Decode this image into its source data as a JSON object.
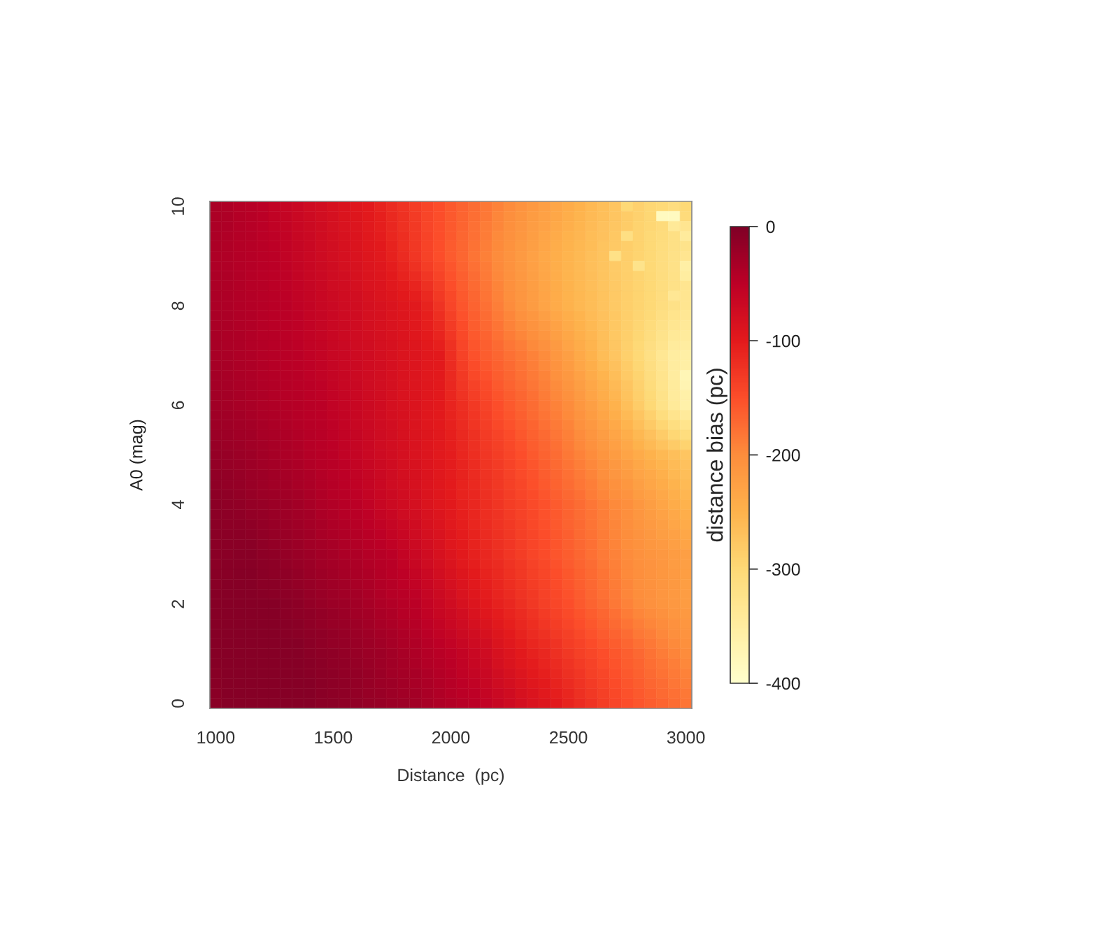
{
  "chart_data": {
    "type": "heatmap",
    "xlabel": "Distance  (pc)",
    "ylabel": "A0 (mag)",
    "clabel": "distance bias (pc)",
    "x": [
      1000,
      1050,
      1100,
      1150,
      1200,
      1250,
      1300,
      1350,
      1400,
      1450,
      1500,
      1550,
      1600,
      1650,
      1700,
      1750,
      1800,
      1850,
      1900,
      1950,
      2000,
      2050,
      2100,
      2150,
      2200,
      2250,
      2300,
      2350,
      2400,
      2450,
      2500,
      2550,
      2600,
      2650,
      2700,
      2750,
      2800,
      2850,
      2900,
      2950,
      3000
    ],
    "y": [
      10,
      9.8,
      9.6,
      9.4,
      9.2,
      9,
      8.8,
      8.6,
      8.4,
      8.2,
      8,
      7.8,
      7.6,
      7.4,
      7.2,
      7,
      6.8,
      6.6,
      6.4,
      6.2,
      6,
      5.8,
      5.6,
      5.4,
      5.2,
      5,
      4.8,
      4.6,
      4.4,
      4.2,
      4,
      3.8,
      3.6,
      3.4,
      3.2,
      3,
      2.8,
      2.6,
      2.4,
      2.2,
      2,
      1.8,
      1.6,
      1.4,
      1.2,
      1,
      0.8,
      0.6,
      0.4,
      0.2,
      0
    ],
    "xlim": [
      975,
      3025
    ],
    "ylim": [
      -0.1,
      10.1
    ],
    "xticks": [
      1000,
      1500,
      2000,
      2500,
      3000
    ],
    "yticks": [
      0,
      2,
      4,
      6,
      8,
      10
    ],
    "clim": [
      -400,
      0
    ],
    "cticks": [
      0,
      -100,
      -200,
      -300,
      -400
    ],
    "cells": [
      [
        -35,
        -39,
        -43,
        -46,
        -50,
        -56,
        -61,
        -67,
        -72,
        -78,
        -83,
        -89,
        -94,
        -100,
        -108,
        -117,
        -125,
        -133,
        -142,
        -150,
        -158,
        -167,
        -175,
        -183,
        -192,
        -200,
        -208,
        -217,
        -225,
        -233,
        -242,
        -250,
        -258,
        -266,
        -274,
        -300,
        -290,
        -297,
        -303,
        -310,
        -300
      ],
      [
        -36,
        -39,
        -43,
        -46,
        -50,
        -55,
        -60,
        -66,
        -71,
        -77,
        -82,
        -88,
        -93,
        -99,
        -106,
        -115,
        -123,
        -132,
        -141,
        -150,
        -158,
        -168,
        -176,
        -184,
        -194,
        -202,
        -210,
        -219,
        -227,
        -235,
        -244,
        -252,
        -260,
        -267,
        -275,
        -283,
        -290,
        -297,
        -385,
        -385,
        -306
      ],
      [
        -36,
        -39,
        -43,
        -46,
        -49,
        -54,
        -59,
        -65,
        -70,
        -75,
        -81,
        -86,
        -91,
        -97,
        -104,
        -113,
        -122,
        -131,
        -141,
        -150,
        -159,
        -168,
        -177,
        -186,
        -195,
        -204,
        -212,
        -221,
        -229,
        -238,
        -246,
        -254,
        -261,
        -269,
        -276,
        -284,
        -291,
        -298,
        -306,
        -340,
        -330
      ],
      [
        -37,
        -40,
        -43,
        -45,
        -49,
        -52,
        -57,
        -63,
        -68,
        -74,
        -79,
        -85,
        -90,
        -96,
        -102,
        -111,
        -120,
        -130,
        -140,
        -150,
        -159,
        -169,
        -178,
        -187,
        -197,
        -205,
        -214,
        -223,
        -232,
        -240,
        -249,
        -255,
        -263,
        -270,
        -278,
        -315,
        -292,
        -299,
        -307,
        -316,
        -345
      ],
      [
        -37,
        -40,
        -43,
        -45,
        -48,
        -51,
        -56,
        -62,
        -67,
        -72,
        -78,
        -83,
        -88,
        -94,
        -100,
        -109,
        -119,
        -129,
        -140,
        -150,
        -160,
        -169,
        -179,
        -189,
        -198,
        -207,
        -216,
        -225,
        -234,
        -243,
        -251,
        -257,
        -264,
        -272,
        -279,
        -285,
        -292,
        -299,
        -309,
        -318,
        -324
      ],
      [
        -38,
        -40,
        -43,
        -45,
        -48,
        -50,
        -55,
        -61,
        -66,
        -71,
        -77,
        -82,
        -87,
        -93,
        -98,
        -107,
        -117,
        -128,
        -139,
        -150,
        -160,
        -170,
        -180,
        -190,
        -200,
        -209,
        -218,
        -227,
        -236,
        -245,
        -253,
        -259,
        -266,
        -273,
        -320,
        -286,
        -293,
        -300,
        -310,
        -320,
        -330
      ],
      [
        -38,
        -40,
        -43,
        -45,
        -47,
        -50,
        -54,
        -60,
        -65,
        -69,
        -75,
        -80,
        -85,
        -91,
        -95,
        -103,
        -112,
        -122,
        -133,
        -145,
        -156,
        -167,
        -177,
        -187,
        -198,
        -207,
        -216,
        -226,
        -235,
        -244,
        -252,
        -259,
        -266,
        -273,
        -280,
        -286,
        -325,
        -300,
        -310,
        -320,
        -355
      ],
      [
        -37,
        -39,
        -42,
        -44,
        -47,
        -49,
        -53,
        -58,
        -63,
        -68,
        -73,
        -78,
        -83,
        -88,
        -93,
        -100,
        -108,
        -116,
        -127,
        -140,
        -152,
        -164,
        -174,
        -185,
        -196,
        -205,
        -215,
        -224,
        -234,
        -243,
        -252,
        -258,
        -265,
        -272,
        -280,
        -286,
        -293,
        -300,
        -310,
        -320,
        -350
      ],
      [
        -37,
        -39,
        -42,
        -44,
        -46,
        -49,
        -52,
        -57,
        -62,
        -66,
        -72,
        -76,
        -80,
        -86,
        -90,
        -96,
        -103,
        -110,
        -121,
        -135,
        -149,
        -161,
        -172,
        -182,
        -193,
        -204,
        -213,
        -223,
        -232,
        -242,
        -251,
        -258,
        -265,
        -272,
        -279,
        -286,
        -293,
        -300,
        -310,
        -320,
        -330
      ],
      [
        -36,
        -38,
        -41,
        -43,
        -46,
        -48,
        -51,
        -55,
        -60,
        -65,
        -70,
        -74,
        -78,
        -83,
        -88,
        -93,
        -99,
        -104,
        -115,
        -130,
        -145,
        -158,
        -169,
        -180,
        -191,
        -202,
        -212,
        -221,
        -231,
        -241,
        -251,
        -257,
        -264,
        -271,
        -279,
        -286,
        -293,
        -300,
        -310,
        -335,
        -330
      ],
      [
        -36,
        -38,
        -41,
        -43,
        -45,
        -48,
        -50,
        -54,
        -59,
        -63,
        -68,
        -72,
        -76,
        -81,
        -85,
        -89,
        -94,
        -98,
        -109,
        -125,
        -141,
        -155,
        -166,
        -177,
        -189,
        -200,
        -210,
        -220,
        -230,
        -240,
        -250,
        -257,
        -264,
        -271,
        -279,
        -286,
        -293,
        -300,
        -310,
        -320,
        -330
      ],
      [
        -35,
        -37,
        -40,
        -42,
        -45,
        -47,
        -50,
        -53,
        -58,
        -62,
        -67,
        -71,
        -75,
        -80,
        -84,
        -88,
        -93,
        -97,
        -106,
        -120,
        -137,
        -152,
        -163,
        -174,
        -185,
        -195,
        -205,
        -214,
        -224,
        -235,
        -245,
        -253,
        -261,
        -269,
        -278,
        -286,
        -294,
        -303,
        -315,
        -326,
        -335
      ],
      [
        -35,
        -37,
        -40,
        -42,
        -44,
        -47,
        -49,
        -52,
        -57,
        -61,
        -66,
        -70,
        -74,
        -79,
        -83,
        -87,
        -92,
        -96,
        -104,
        -115,
        -132,
        -148,
        -161,
        -171,
        -181,
        -191,
        -200,
        -209,
        -218,
        -229,
        -240,
        -249,
        -258,
        -268,
        -277,
        -287,
        -296,
        -307,
        -319,
        -332,
        -340
      ],
      [
        -34,
        -36,
        -39,
        -41,
        -44,
        -46,
        -49,
        -52,
        -56,
        -60,
        -65,
        -69,
        -73,
        -77,
        -81,
        -85,
        -90,
        -94,
        -101,
        -110,
        -128,
        -145,
        -158,
        -167,
        -177,
        -186,
        -194,
        -203,
        -212,
        -224,
        -235,
        -246,
        -256,
        -266,
        -277,
        -287,
        -297,
        -310,
        -324,
        -338,
        -345
      ],
      [
        -34,
        -36,
        -39,
        -41,
        -43,
        -46,
        -48,
        -51,
        -55,
        -59,
        -64,
        -68,
        -72,
        -76,
        -80,
        -84,
        -89,
        -93,
        -99,
        -105,
        -123,
        -141,
        -156,
        -164,
        -173,
        -182,
        -189,
        -198,
        -206,
        -218,
        -230,
        -242,
        -253,
        -265,
        -276,
        -288,
        -299,
        -314,
        -328,
        -344,
        -350
      ],
      [
        -33,
        -35,
        -38,
        -40,
        -43,
        -45,
        -48,
        -50,
        -54,
        -58,
        -63,
        -67,
        -71,
        -75,
        -79,
        -83,
        -88,
        -92,
        -96,
        -100,
        -119,
        -138,
        -153,
        -161,
        -169,
        -177,
        -184,
        -192,
        -200,
        -213,
        -225,
        -238,
        -250,
        -263,
        -275,
        -288,
        -300,
        -317,
        -333,
        -350,
        -355
      ],
      [
        -32,
        -34,
        -37,
        -39,
        -42,
        -44,
        -47,
        -49,
        -53,
        -56,
        -61,
        -66,
        -70,
        -74,
        -78,
        -82,
        -87,
        -92,
        -96,
        -100,
        -117,
        -134,
        -148,
        -157,
        -165,
        -173,
        -181,
        -189,
        -197,
        -209,
        -220,
        -233,
        -245,
        -258,
        -270,
        -284,
        -297,
        -314,
        -331,
        -348,
        -356
      ],
      [
        -31,
        -33,
        -36,
        -38,
        -41,
        -43,
        -46,
        -48,
        -52,
        -55,
        -60,
        -64,
        -69,
        -73,
        -77,
        -82,
        -87,
        -91,
        -96,
        -100,
        -115,
        -131,
        -144,
        -153,
        -161,
        -169,
        -177,
        -185,
        -193,
        -205,
        -215,
        -228,
        -240,
        -253,
        -265,
        -280,
        -293,
        -310,
        -328,
        -347,
        -375
      ],
      [
        -30,
        -32,
        -35,
        -37,
        -40,
        -42,
        -45,
        -47,
        -50,
        -53,
        -58,
        -63,
        -67,
        -72,
        -77,
        -81,
        -86,
        -91,
        -95,
        -100,
        -114,
        -127,
        -139,
        -148,
        -158,
        -166,
        -174,
        -182,
        -190,
        -200,
        -210,
        -223,
        -235,
        -248,
        -260,
        -275,
        -290,
        -307,
        -326,
        -345,
        -370
      ],
      [
        -29,
        -31,
        -34,
        -36,
        -39,
        -41,
        -44,
        -46,
        -49,
        -52,
        -57,
        -61,
        -66,
        -71,
        -76,
        -81,
        -86,
        -90,
        -95,
        -100,
        -112,
        -124,
        -135,
        -144,
        -154,
        -162,
        -170,
        -178,
        -186,
        -196,
        -205,
        -218,
        -230,
        -243,
        -255,
        -271,
        -286,
        -303,
        -323,
        -344,
        -359
      ],
      [
        -28,
        -30,
        -33,
        -35,
        -38,
        -40,
        -43,
        -45,
        -48,
        -50,
        -55,
        -60,
        -65,
        -70,
        -75,
        -80,
        -85,
        -90,
        -95,
        -100,
        -110,
        -120,
        -130,
        -140,
        -150,
        -158,
        -167,
        -175,
        -183,
        -192,
        -200,
        -213,
        -225,
        -238,
        -250,
        -267,
        -283,
        -300,
        -321,
        -342,
        -360
      ],
      [
        -26,
        -28,
        -31,
        -33,
        -36,
        -38,
        -42,
        -44,
        -47,
        -49,
        -54,
        -59,
        -64,
        -69,
        -74,
        -79,
        -84,
        -89,
        -94,
        -99,
        -109,
        -118,
        -128,
        -137,
        -147,
        -155,
        -164,
        -172,
        -180,
        -189,
        -197,
        -209,
        -220,
        -232,
        -244,
        -260,
        -274,
        -290,
        -308,
        -327,
        -343
      ],
      [
        -24,
        -26,
        -29,
        -31,
        -34,
        -37,
        -40,
        -43,
        -46,
        -48,
        -53,
        -58,
        -63,
        -68,
        -73,
        -78,
        -83,
        -88,
        -94,
        -99,
        -107,
        -116,
        -126,
        -135,
        -144,
        -152,
        -160,
        -168,
        -177,
        -185,
        -193,
        -205,
        -215,
        -227,
        -238,
        -252,
        -266,
        -280,
        -296,
        -312,
        -326
      ],
      [
        -22,
        -24,
        -27,
        -29,
        -33,
        -35,
        -39,
        -41,
        -45,
        -48,
        -52,
        -57,
        -62,
        -68,
        -73,
        -78,
        -83,
        -88,
        -93,
        -98,
        -106,
        -115,
        -123,
        -132,
        -140,
        -148,
        -157,
        -165,
        -173,
        -182,
        -190,
        -200,
        -210,
        -221,
        -232,
        -245,
        -257,
        -270,
        -283,
        -297,
        -309
      ],
      [
        -20,
        -22,
        -25,
        -27,
        -31,
        -34,
        -37,
        -40,
        -44,
        -47,
        -51,
        -56,
        -61,
        -67,
        -72,
        -77,
        -82,
        -87,
        -93,
        -98,
        -104,
        -113,
        -121,
        -130,
        -137,
        -145,
        -153,
        -161,
        -170,
        -178,
        -186,
        -196,
        -205,
        -216,
        -226,
        -237,
        -249,
        -260,
        -271,
        -282,
        -292
      ],
      [
        -18,
        -20,
        -23,
        -25,
        -29,
        -32,
        -36,
        -39,
        -43,
        -46,
        -50,
        -55,
        -60,
        -66,
        -71,
        -76,
        -81,
        -86,
        -92,
        -97,
        -103,
        -111,
        -119,
        -127,
        -134,
        -142,
        -150,
        -158,
        -167,
        -175,
        -183,
        -192,
        -200,
        -210,
        -220,
        -230,
        -240,
        -250,
        -258,
        -267,
        -275
      ],
      [
        -16,
        -19,
        -21,
        -24,
        -27,
        -30,
        -34,
        -37,
        -41,
        -44,
        -48,
        -53,
        -58,
        -64,
        -69,
        -75,
        -80,
        -85,
        -91,
        -96,
        -102,
        -110,
        -118,
        -126,
        -132,
        -140,
        -148,
        -156,
        -164,
        -172,
        -180,
        -189,
        -196,
        -206,
        -215,
        -225,
        -235,
        -245,
        -253,
        -262,
        -270
      ],
      [
        -15,
        -17,
        -20,
        -22,
        -25,
        -28,
        -32,
        -35,
        -39,
        -43,
        -47,
        -51,
        -56,
        -62,
        -68,
        -73,
        -79,
        -84,
        -90,
        -96,
        -102,
        -109,
        -117,
        -124,
        -131,
        -138,
        -146,
        -153,
        -161,
        -169,
        -177,
        -185,
        -193,
        -202,
        -211,
        -219,
        -230,
        -239,
        -248,
        -257,
        -265
      ],
      [
        -13,
        -16,
        -18,
        -21,
        -24,
        -27,
        -29,
        -33,
        -37,
        -41,
        -45,
        -50,
        -54,
        -60,
        -66,
        -72,
        -77,
        -83,
        -90,
        -95,
        -101,
        -109,
        -115,
        -123,
        -129,
        -137,
        -143,
        -151,
        -159,
        -166,
        -174,
        -182,
        -189,
        -198,
        -206,
        -214,
        -224,
        -234,
        -242,
        -251,
        -260
      ],
      [
        -12,
        -14,
        -17,
        -19,
        -22,
        -25,
        -27,
        -31,
        -35,
        -40,
        -44,
        -48,
        -52,
        -58,
        -65,
        -70,
        -76,
        -82,
        -89,
        -95,
        -101,
        -108,
        -114,
        -121,
        -128,
        -135,
        -141,
        -148,
        -156,
        -163,
        -171,
        -178,
        -186,
        -194,
        -202,
        -208,
        -219,
        -228,
        -237,
        -246,
        -255
      ],
      [
        -10,
        -13,
        -15,
        -18,
        -20,
        -23,
        -25,
        -29,
        -33,
        -38,
        -42,
        -46,
        -50,
        -56,
        -63,
        -69,
        -75,
        -81,
        -88,
        -94,
        -100,
        -107,
        -113,
        -120,
        -126,
        -133,
        -139,
        -146,
        -153,
        -160,
        -168,
        -175,
        -182,
        -190,
        -197,
        -203,
        -214,
        -223,
        -232,
        -241,
        -250
      ],
      [
        -10,
        -12,
        -13,
        -16,
        -18,
        -21,
        -24,
        -27,
        -31,
        -36,
        -40,
        -44,
        -48,
        -53,
        -60,
        -65,
        -72,
        -78,
        -85,
        -92,
        -98,
        -106,
        -112,
        -119,
        -125,
        -132,
        -138,
        -145,
        -152,
        -159,
        -167,
        -174,
        -181,
        -189,
        -196,
        -202,
        -212,
        -220,
        -229,
        -237,
        -245
      ],
      [
        -9,
        -11,
        -12,
        -14,
        -16,
        -19,
        -22,
        -26,
        -30,
        -34,
        -38,
        -42,
        -46,
        -51,
        -56,
        -61,
        -68,
        -75,
        -83,
        -90,
        -97,
        -104,
        -111,
        -118,
        -124,
        -131,
        -137,
        -144,
        -151,
        -158,
        -166,
        -173,
        -180,
        -188,
        -195,
        -202,
        -210,
        -218,
        -225,
        -233,
        -240
      ],
      [
        -9,
        -10,
        -10,
        -11,
        -15,
        -18,
        -21,
        -24,
        -28,
        -33,
        -36,
        -40,
        -43,
        -48,
        -53,
        -58,
        -65,
        -73,
        -80,
        -87,
        -95,
        -103,
        -109,
        -116,
        -122,
        -129,
        -136,
        -143,
        -149,
        -157,
        -164,
        -172,
        -179,
        -187,
        -194,
        -201,
        -209,
        -215,
        -222,
        -228,
        -235
      ],
      [
        -8,
        -9,
        -9,
        -9,
        -13,
        -16,
        -19,
        -23,
        -27,
        -31,
        -34,
        -38,
        -41,
        -46,
        -49,
        -54,
        -61,
        -70,
        -78,
        -85,
        -94,
        -101,
        -108,
        -115,
        -121,
        -128,
        -135,
        -142,
        -148,
        -156,
        -163,
        -171,
        -178,
        -186,
        -193,
        -201,
        -207,
        -213,
        -218,
        -224,
        -230
      ],
      [
        -8,
        -8,
        -7,
        -7,
        -11,
        -14,
        -18,
        -21,
        -25,
        -29,
        -32,
        -36,
        -39,
        -43,
        -46,
        -50,
        -58,
        -67,
        -75,
        -83,
        -92,
        -100,
        -107,
        -114,
        -120,
        -127,
        -134,
        -141,
        -147,
        -155,
        -162,
        -170,
        -177,
        -185,
        -192,
        -200,
        -205,
        -210,
        -215,
        -220,
        -225
      ],
      [
        -8,
        -7,
        -7,
        -7,
        -10,
        -12,
        -16,
        -19,
        -23,
        -27,
        -30,
        -34,
        -37,
        -41,
        -44,
        -48,
        -56,
        -64,
        -72,
        -80,
        -89,
        -97,
        -104,
        -111,
        -117,
        -124,
        -131,
        -139,
        -145,
        -153,
        -160,
        -168,
        -175,
        -183,
        -190,
        -198,
        -204,
        -209,
        -214,
        -219,
        -224
      ],
      [
        -7,
        -7,
        -6,
        -6,
        -9,
        -11,
        -14,
        -17,
        -21,
        -25,
        -28,
        -32,
        -35,
        -39,
        -43,
        -47,
        -53,
        -60,
        -68,
        -77,
        -85,
        -93,
        -101,
        -108,
        -115,
        -122,
        -129,
        -136,
        -143,
        -150,
        -157,
        -165,
        -173,
        -181,
        -188,
        -197,
        -203,
        -208,
        -213,
        -218,
        -223
      ],
      [
        -7,
        -6,
        -6,
        -6,
        -8,
        -9,
        -13,
        -16,
        -20,
        -23,
        -26,
        -29,
        -33,
        -37,
        -41,
        -45,
        -51,
        -57,
        -65,
        -73,
        -82,
        -90,
        -98,
        -106,
        -112,
        -119,
        -126,
        -134,
        -140,
        -148,
        -155,
        -163,
        -171,
        -179,
        -187,
        -195,
        -202,
        -207,
        -212,
        -217,
        -222
      ],
      [
        -6,
        -6,
        -5,
        -5,
        -7,
        -8,
        -11,
        -14,
        -18,
        -21,
        -24,
        -27,
        -31,
        -35,
        -40,
        -44,
        -48,
        -53,
        -61,
        -70,
        -78,
        -86,
        -95,
        -103,
        -110,
        -117,
        -124,
        -131,
        -138,
        -145,
        -152,
        -160,
        -169,
        -177,
        -185,
        -194,
        -201,
        -206,
        -211,
        -216,
        -221
      ],
      [
        -6,
        -5,
        -5,
        -5,
        -6,
        -6,
        -9,
        -12,
        -16,
        -19,
        -22,
        -25,
        -29,
        -33,
        -38,
        -42,
        -46,
        -50,
        -58,
        -67,
        -75,
        -83,
        -92,
        -100,
        -107,
        -114,
        -121,
        -129,
        -136,
        -143,
        -150,
        -158,
        -167,
        -175,
        -183,
        -192,
        -200,
        -205,
        -210,
        -215,
        -220
      ],
      [
        -6,
        -5,
        -5,
        -5,
        -6,
        -6,
        -8,
        -11,
        -14,
        -17,
        -20,
        -23,
        -27,
        -31,
        -35,
        -39,
        -44,
        -48,
        -55,
        -63,
        -70,
        -78,
        -87,
        -95,
        -102,
        -110,
        -117,
        -125,
        -132,
        -139,
        -146,
        -154,
        -162,
        -170,
        -178,
        -186,
        -194,
        -200,
        -205,
        -211,
        -216
      ],
      [
        -6,
        -5,
        -5,
        -5,
        -6,
        -6,
        -7,
        -9,
        -13,
        -16,
        -19,
        -21,
        -25,
        -29,
        -33,
        -37,
        -41,
        -45,
        -52,
        -59,
        -66,
        -73,
        -82,
        -89,
        -98,
        -105,
        -113,
        -120,
        -127,
        -134,
        -142,
        -149,
        -157,
        -165,
        -173,
        -181,
        -188,
        -195,
        -200,
        -206,
        -212
      ],
      [
        -6,
        -5,
        -5,
        -5,
        -5,
        -5,
        -7,
        -8,
        -11,
        -14,
        -17,
        -20,
        -23,
        -26,
        -30,
        -34,
        -39,
        -43,
        -49,
        -55,
        -61,
        -69,
        -76,
        -84,
        -93,
        -101,
        -108,
        -116,
        -123,
        -130,
        -137,
        -145,
        -153,
        -160,
        -167,
        -175,
        -183,
        -189,
        -196,
        -202,
        -208
      ],
      [
        -6,
        -5,
        -5,
        -5,
        -5,
        -5,
        -6,
        -6,
        -10,
        -13,
        -16,
        -18,
        -21,
        -24,
        -28,
        -32,
        -36,
        -40,
        -46,
        -51,
        -57,
        -64,
        -71,
        -78,
        -89,
        -96,
        -104,
        -111,
        -118,
        -125,
        -133,
        -140,
        -148,
        -155,
        -162,
        -170,
        -177,
        -184,
        -191,
        -197,
        -204
      ],
      [
        -6,
        -5,
        -5,
        -5,
        -5,
        -5,
        -5,
        -5,
        -8,
        -11,
        -14,
        -16,
        -19,
        -22,
        -25,
        -29,
        -34,
        -38,
        -43,
        -47,
        -52,
        -59,
        -66,
        -73,
        -84,
        -92,
        -100,
        -107,
        -114,
        -121,
        -129,
        -136,
        -143,
        -150,
        -157,
        -164,
        -171,
        -179,
        -186,
        -193,
        -200
      ],
      [
        -6,
        -5,
        -5,
        -5,
        -5,
        -5,
        -5,
        -5,
        -7,
        -10,
        -13,
        -15,
        -18,
        -21,
        -24,
        -28,
        -32,
        -36,
        -41,
        -45,
        -50,
        -56,
        -63,
        -70,
        -80,
        -88,
        -96,
        -103,
        -110,
        -117,
        -125,
        -132,
        -139,
        -147,
        -154,
        -161,
        -168,
        -176,
        -182,
        -189,
        -196
      ],
      [
        -7,
        -5,
        -5,
        -5,
        -5,
        -5,
        -5,
        -5,
        -7,
        -10,
        -12,
        -15,
        -17,
        -20,
        -23,
        -27,
        -30,
        -34,
        -39,
        -43,
        -48,
        -54,
        -60,
        -67,
        -76,
        -84,
        -92,
        -99,
        -106,
        -113,
        -121,
        -128,
        -136,
        -143,
        -151,
        -158,
        -165,
        -172,
        -179,
        -185,
        -192
      ],
      [
        -7,
        -6,
        -5,
        -5,
        -5,
        -5,
        -5,
        -5,
        -6,
        -9,
        -12,
        -14,
        -17,
        -20,
        -22,
        -25,
        -29,
        -33,
        -37,
        -42,
        -46,
        -51,
        -56,
        -63,
        -72,
        -79,
        -87,
        -94,
        -101,
        -108,
        -116,
        -125,
        -132,
        -140,
        -148,
        -156,
        -162,
        -169,
        -175,
        -182,
        -188
      ],
      [
        -8,
        -6,
        -5,
        -5,
        -5,
        -5,
        -5,
        -5,
        -6,
        -9,
        -11,
        -14,
        -16,
        -19,
        -21,
        -24,
        -27,
        -31,
        -35,
        -40,
        -44,
        -49,
        -53,
        -60,
        -68,
        -75,
        -83,
        -90,
        -97,
        -104,
        -112,
        -121,
        -129,
        -136,
        -145,
        -153,
        -159,
        -165,
        -172,
        -178,
        -184
      ],
      [
        -8,
        -6,
        -5,
        -5,
        -5,
        -5,
        -5,
        -5,
        -5,
        -8,
        -10,
        -13,
        -15,
        -18,
        -20,
        -23,
        -25,
        -29,
        -33,
        -38,
        -42,
        -46,
        -50,
        -57,
        -64,
        -71,
        -79,
        -86,
        -93,
        -100,
        -108,
        -117,
        -125,
        -133,
        -142,
        -150,
        -156,
        -162,
        -168,
        -174,
        -180
      ]
    ]
  }
}
